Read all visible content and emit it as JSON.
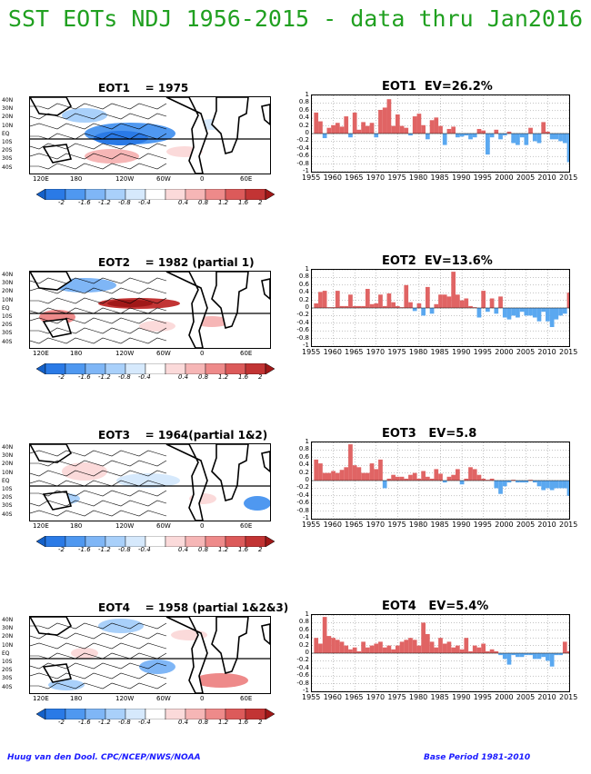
{
  "title": "SST EOTs NDJ 1956-2015 - data thru Jan2016",
  "colorbar_ticks": [
    "-2",
    "-1.6",
    "-1.2",
    "-0.8",
    "-0.4",
    "0.4",
    "0.8",
    "1.2",
    "1.6",
    "2"
  ],
  "colorbar_colors": [
    "#1460c8",
    "#2a7ae6",
    "#4f98f0",
    "#7fb6f6",
    "#a9d0fa",
    "#d6e9fc",
    "#ffffff",
    "#fbdada",
    "#f6b6b6",
    "#ee8a8a",
    "#dc5a5a",
    "#c23434",
    "#a01818"
  ],
  "map_lat_labels": [
    "40N",
    "30N",
    "20N",
    "10N",
    "EQ",
    "10S",
    "20S",
    "30S",
    "40S"
  ],
  "map_lon_labels": [
    "120E",
    "180",
    "120W",
    "60W",
    "0",
    "60E"
  ],
  "ts_yticks": [
    "1",
    "0.8",
    "0.6",
    "0.4",
    "0.2",
    "0",
    "-0.2",
    "-0.4",
    "-0.6",
    "-0.8",
    "-1"
  ],
  "ts_xticks": [
    "1955",
    "1960",
    "1965",
    "1970",
    "1975",
    "1980",
    "1985",
    "1990",
    "1995",
    "2000",
    "2005",
    "2010",
    "2015"
  ],
  "footer_left": "Huug van den Dool. CPC/NCEP/NWS/NOAA",
  "footer_right": "Base Period 1981-2010",
  "bar_colors": {
    "positive": "#e06464",
    "negative": "#5aa8f0"
  },
  "chart_data": [
    {
      "type": "bar",
      "map_title": "EOT1    = 1975",
      "title": "EOT1  EV=26.2%",
      "xlabel": "",
      "ylabel": "",
      "ylim": [
        -1,
        1
      ],
      "x_start": 1956,
      "values": [
        0.55,
        0.32,
        -0.12,
        0.15,
        0.22,
        0.28,
        0.18,
        0.45,
        -0.1,
        0.55,
        0.1,
        0.3,
        0.2,
        0.28,
        -0.1,
        0.62,
        0.68,
        0.9,
        0.2,
        0.5,
        0.2,
        0.15,
        -0.05,
        0.45,
        0.52,
        0.22,
        -0.15,
        0.35,
        0.42,
        0.2,
        -0.3,
        0.12,
        0.18,
        -0.1,
        -0.08,
        -0.05,
        -0.15,
        -0.1,
        0.12,
        0.08,
        -0.55,
        -0.1,
        0.1,
        -0.15,
        -0.05,
        0.05,
        -0.25,
        -0.3,
        -0.1,
        -0.3,
        0.15,
        -0.2,
        -0.25,
        0.3,
        0.05,
        -0.15,
        -0.15,
        -0.2,
        -0.25,
        -0.75
      ]
    },
    {
      "type": "bar",
      "map_title": "EOT2    = 1982 (partial 1)",
      "title": "EOT2  EV=13.6%",
      "xlabel": "",
      "ylabel": "",
      "ylim": [
        -1,
        1
      ],
      "x_start": 1956,
      "values": [
        0.12,
        0.42,
        0.45,
        0.02,
        0.02,
        0.45,
        0.05,
        0.05,
        0.35,
        0.05,
        0.05,
        0.05,
        0.5,
        0.1,
        0.12,
        0.35,
        0.05,
        0.38,
        0.15,
        0.05,
        0.02,
        0.6,
        0.15,
        -0.08,
        0.12,
        -0.2,
        0.55,
        -0.15,
        0.1,
        0.35,
        0.35,
        0.3,
        0.95,
        0.35,
        0.2,
        0.25,
        0.05,
        0.02,
        -0.25,
        0.45,
        -0.1,
        0.25,
        -0.15,
        0.3,
        -0.25,
        -0.3,
        -0.2,
        -0.25,
        -0.1,
        -0.2,
        -0.2,
        -0.25,
        -0.35,
        -0.1,
        -0.35,
        -0.5,
        -0.3,
        -0.2,
        -0.15,
        0.4
      ]
    },
    {
      "type": "bar",
      "map_title": "EOT3    = 1964(partial 1&2)",
      "title": "EOT3   EV=5.8",
      "xlabel": "",
      "ylabel": "",
      "ylim": [
        -1,
        1
      ],
      "x_start": 1956,
      "values": [
        0.55,
        0.45,
        0.2,
        0.2,
        0.25,
        0.2,
        0.28,
        0.35,
        0.95,
        0.4,
        0.35,
        0.2,
        0.2,
        0.45,
        0.3,
        0.55,
        -0.2,
        0.05,
        0.15,
        0.1,
        0.1,
        0.05,
        0.15,
        0.2,
        0.05,
        0.25,
        0.1,
        0.05,
        0.3,
        0.18,
        -0.05,
        0.1,
        0.15,
        0.3,
        -0.1,
        0.05,
        0.35,
        0.3,
        0.15,
        0.05,
        0.02,
        0.05,
        -0.2,
        -0.35,
        -0.15,
        -0.05,
        0.02,
        -0.05,
        -0.05,
        -0.05,
        0.02,
        -0.05,
        -0.15,
        -0.25,
        -0.2,
        -0.25,
        -0.2,
        -0.2,
        -0.2,
        -0.4
      ]
    },
    {
      "type": "bar",
      "map_title": "EOT4    = 1958 (partial 1&2&3)",
      "title": "EOT4   EV=5.4%",
      "xlabel": "",
      "ylabel": "",
      "ylim": [
        -1,
        1
      ],
      "x_start": 1956,
      "values": [
        0.4,
        0.25,
        0.95,
        0.45,
        0.4,
        0.35,
        0.3,
        0.2,
        0.1,
        0.15,
        0.05,
        0.3,
        0.15,
        0.2,
        0.25,
        0.3,
        0.15,
        0.2,
        0.1,
        0.2,
        0.3,
        0.35,
        0.4,
        0.35,
        0.2,
        0.8,
        0.5,
        0.3,
        0.15,
        0.4,
        0.25,
        0.3,
        0.15,
        0.2,
        0.1,
        0.4,
        0.05,
        0.2,
        0.15,
        0.25,
        0.05,
        0.1,
        0.05,
        -0.05,
        -0.15,
        -0.3,
        -0.05,
        -0.1,
        -0.1,
        -0.05,
        -0.05,
        -0.15,
        -0.15,
        -0.1,
        -0.2,
        -0.35,
        -0.05,
        -0.05,
        0.3,
        0.05
      ]
    }
  ]
}
